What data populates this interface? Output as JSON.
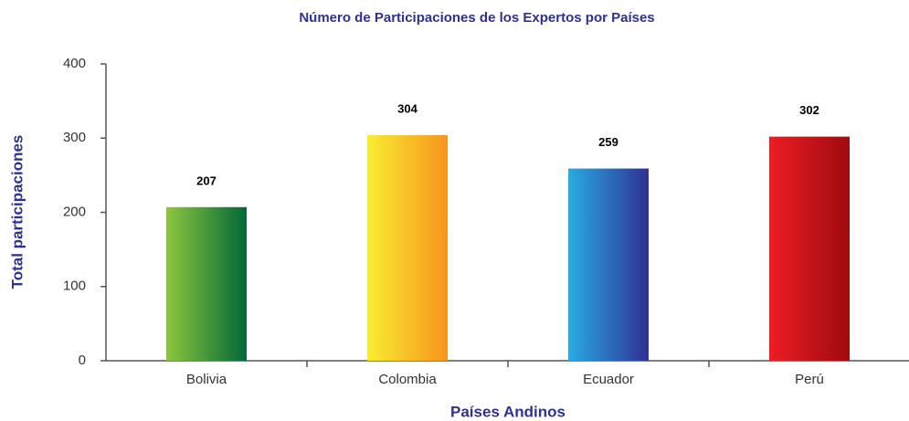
{
  "chart_data": {
    "type": "bar",
    "title": "Número de Participaciones de los Expertos por Países",
    "x_label": "Países Andinos",
    "y_label": "Total participaciones",
    "categories": [
      "Bolivia",
      "Colombia",
      "Ecuador",
      "Perú"
    ],
    "values": [
      207,
      304,
      259,
      302
    ],
    "colors": [
      [
        "#8dc63f",
        "#006837"
      ],
      [
        "#f9ed32",
        "#f7941d"
      ],
      [
        "#29abe2",
        "#2e3192"
      ],
      [
        "#ed1c24",
        "#9e0b0f"
      ]
    ],
    "ylim": [
      0,
      400
    ],
    "yticks": [
      0,
      100,
      200,
      300,
      400
    ],
    "grid": false
  }
}
